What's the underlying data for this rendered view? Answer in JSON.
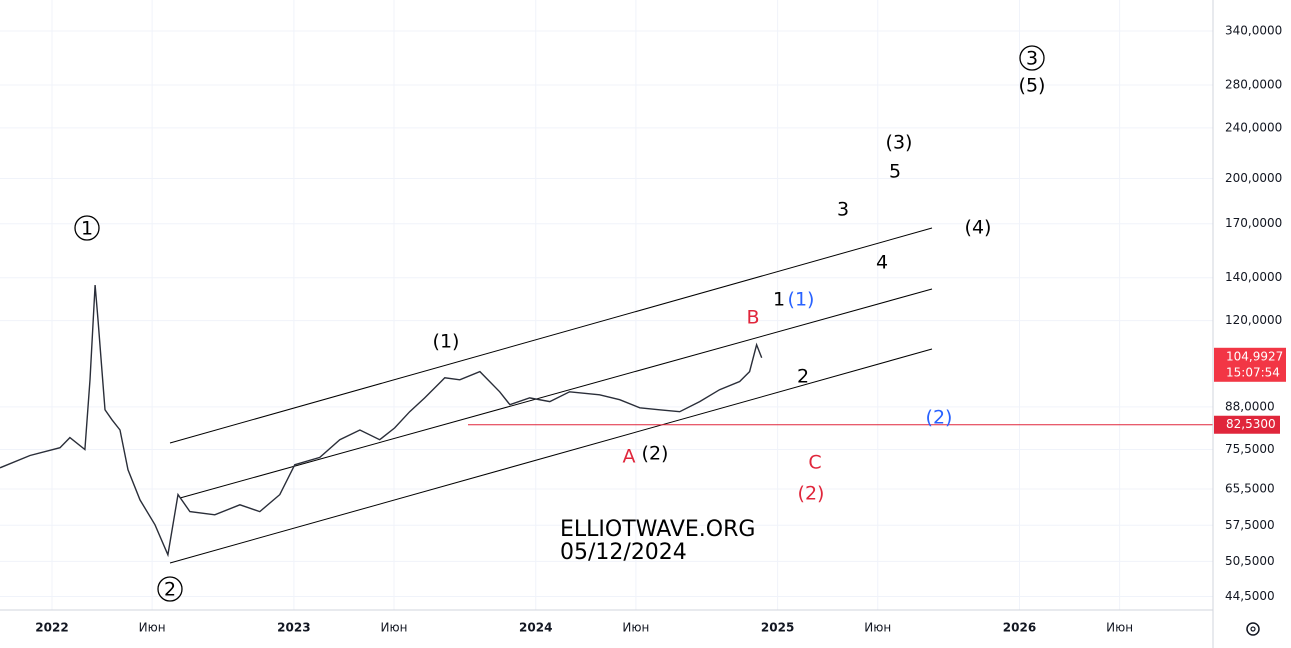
{
  "chart_data": {
    "type": "line",
    "log_scale": true,
    "grid": true,
    "color": "#2a2e39",
    "x": [
      2021.785,
      2021.909,
      2022.033,
      2022.074,
      2022.136,
      2022.157,
      2022.178,
      2022.19,
      2022.219,
      2022.248,
      2022.281,
      2022.314,
      2022.364,
      2022.426,
      2022.479,
      2022.521,
      2022.57,
      2022.673,
      2022.777,
      2022.859,
      2022.942,
      2023.004,
      2023.107,
      2023.19,
      2023.273,
      2023.355,
      2023.417,
      2023.479,
      2023.541,
      2023.624,
      2023.686,
      2023.769,
      2023.851,
      2023.893,
      2023.975,
      2024.058,
      2024.14,
      2024.264,
      2024.347,
      2024.43,
      2024.512,
      2024.595,
      2024.678,
      2024.76,
      2024.843,
      2024.884,
      2024.913,
      2024.934
    ],
    "values": [
      70.7,
      73.9,
      76.0,
      78.8,
      75.5,
      97.0,
      136.4,
      120.4,
      87.1,
      84.0,
      81.0,
      70.2,
      63.0,
      57.6,
      51.7,
      64.2,
      60.4,
      59.7,
      61.9,
      60.4,
      64.2,
      71.5,
      73.4,
      78.2,
      81.0,
      78.2,
      81.6,
      86.5,
      90.9,
      97.7,
      97.0,
      99.9,
      92.9,
      88.7,
      90.9,
      89.7,
      92.9,
      91.9,
      90.3,
      87.7,
      87.1,
      86.5,
      89.7,
      93.6,
      96.4,
      99.9,
      110.0,
      104.9927
    ],
    "xlim": [
      2021.785,
      2026.8
    ],
    "ylim": [
      42.4,
      380
    ],
    "xticks": [
      {
        "value": 2022,
        "label": "2022"
      },
      {
        "value": 2022.414,
        "label": "Июн"
      },
      {
        "value": 2023,
        "label": "2023"
      },
      {
        "value": 2023.414,
        "label": "Июн"
      },
      {
        "value": 2024,
        "label": "2024"
      },
      {
        "value": 2024.414,
        "label": "Июн"
      },
      {
        "value": 2025,
        "label": "2025"
      },
      {
        "value": 2025.414,
        "label": "Июн"
      },
      {
        "value": 2026,
        "label": "2026"
      },
      {
        "value": 2026.414,
        "label": "Июн"
      }
    ],
    "yticks": [
      {
        "value": 340,
        "label": "340,0000"
      },
      {
        "value": 280,
        "label": "280,0000"
      },
      {
        "value": 240,
        "label": "240,0000"
      },
      {
        "value": 200,
        "label": "200,0000"
      },
      {
        "value": 170,
        "label": "170,0000"
      },
      {
        "value": 140,
        "label": "140,0000"
      },
      {
        "value": 120,
        "label": "120,0000"
      },
      {
        "value": 88,
        "label": "88,0000"
      },
      {
        "value": 75.5,
        "label": "75,5000"
      },
      {
        "value": 65.5,
        "label": "65,5000"
      },
      {
        "value": 57.5,
        "label": "57,5000"
      },
      {
        "value": 50.5,
        "label": "50,5000"
      },
      {
        "value": 44.5,
        "label": "44,5000"
      }
    ],
    "last_price": {
      "value": 104.9927,
      "label": "104,9927"
    },
    "countdown": "15:07:54",
    "level": {
      "value": 82.53,
      "label": "82,5300"
    },
    "annotations": [
      "1",
      "2",
      "3",
      "(5)",
      "(3)",
      "5",
      "3",
      "(4)",
      "4",
      "1",
      "(1)",
      "B",
      "(1)",
      "2",
      "(2)",
      "A",
      "(2)",
      "C",
      "(2)",
      "ELLIOTWAVE.ORG",
      "05/12/2024"
    ]
  }
}
